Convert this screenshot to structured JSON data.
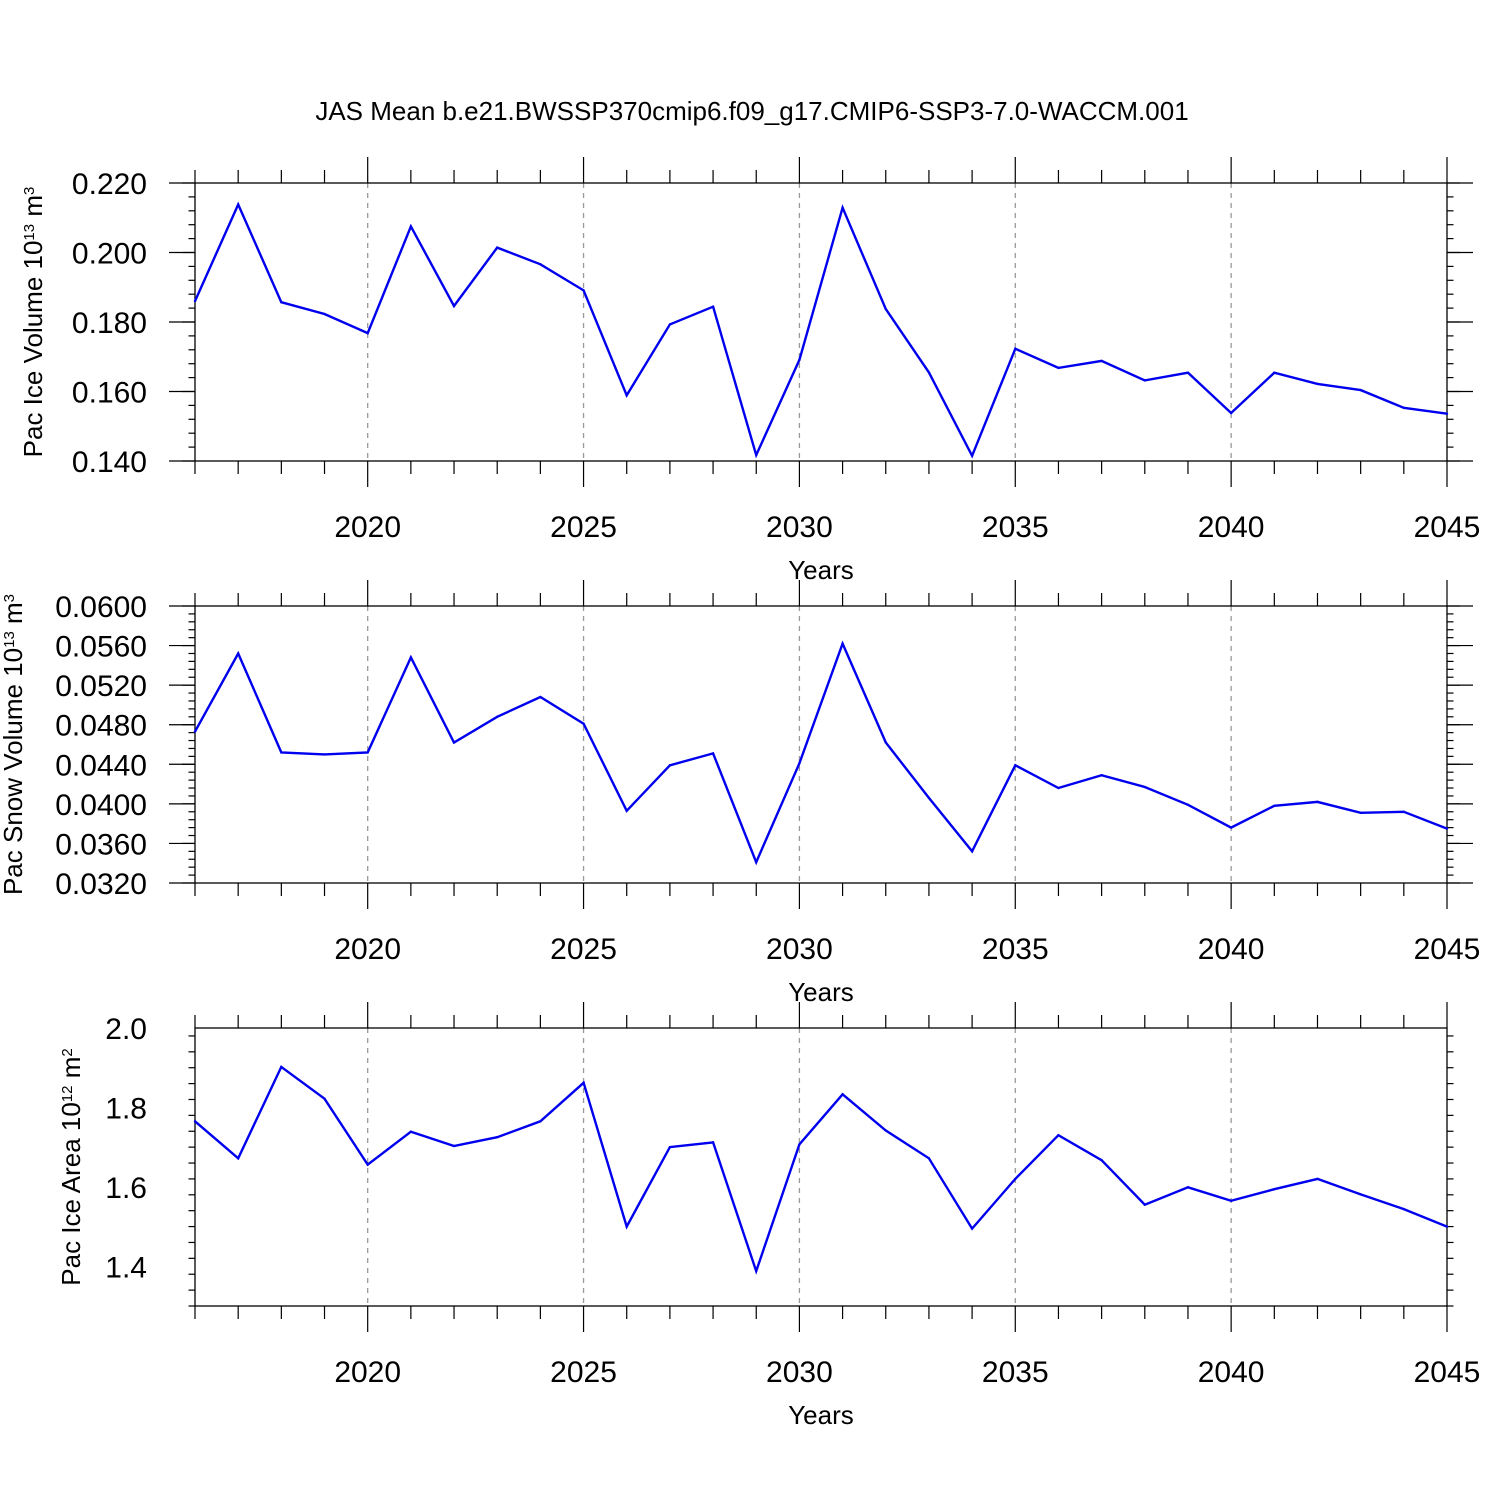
{
  "title": "JAS Mean b.e21.BWSSP370cmip6.f09_g17.CMIP6-SSP3-7.0-WACCM.001",
  "colors": {
    "line": "#0000ee",
    "axis": "#000000",
    "grid": "#999999"
  },
  "chart_data": [
    {
      "type": "line",
      "xlabel": "Years",
      "ylabel": {
        "text": "Pac Ice Volume 10",
        "exp": "13",
        "unit": " m",
        "unit_exp": "3"
      },
      "xlim": [
        2016,
        2045
      ],
      "xticks": [
        2020,
        2025,
        2030,
        2035,
        2040,
        2045
      ],
      "xtick_labels": [
        "2020",
        "2025",
        "2030",
        "2035",
        "2040",
        "2045"
      ],
      "ylim": [
        0.14,
        0.22
      ],
      "yticks": [
        0.14,
        0.16,
        0.18,
        0.2,
        0.22
      ],
      "ytick_labels": [
        "0.140",
        "0.160",
        "0.180",
        "0.200",
        "0.220"
      ],
      "grid": "vertical dashed at major x ticks",
      "x": [
        2016,
        2017,
        2018,
        2019,
        2020,
        2021,
        2022,
        2023,
        2024,
        2025,
        2026,
        2027,
        2028,
        2029,
        2030,
        2031,
        2032,
        2033,
        2034,
        2035,
        2036,
        2037,
        2038,
        2039,
        2040,
        2041,
        2042,
        2043,
        2044,
        2045
      ],
      "values": [
        0.186,
        0.2138,
        0.1857,
        0.1823,
        0.1768,
        0.2075,
        0.1846,
        0.2014,
        0.1966,
        0.1891,
        0.1589,
        0.1793,
        0.1844,
        0.1417,
        0.1691,
        0.2129,
        0.1837,
        0.1655,
        0.1415,
        0.1723,
        0.1668,
        0.1688,
        0.1632,
        0.1654,
        0.1538,
        0.1654,
        0.1622,
        0.1604,
        0.1553,
        0.1536
      ]
    },
    {
      "type": "line",
      "xlabel": "Years",
      "ylabel": {
        "text": "Pac Snow Volume 10",
        "exp": "13",
        "unit": " m",
        "unit_exp": "3"
      },
      "xlim": [
        2016,
        2045
      ],
      "xticks": [
        2020,
        2025,
        2030,
        2035,
        2040,
        2045
      ],
      "xtick_labels": [
        "2020",
        "2025",
        "2030",
        "2035",
        "2040",
        "2045"
      ],
      "ylim": [
        0.032,
        0.06
      ],
      "yticks": [
        0.032,
        0.036,
        0.04,
        0.044,
        0.048,
        0.052,
        0.056,
        0.06
      ],
      "ytick_labels": [
        "0.0320",
        "0.0360",
        "0.0400",
        "0.0440",
        "0.0480",
        "0.0520",
        "0.0560",
        "0.0600"
      ],
      "grid": "vertical dashed at major x ticks",
      "x": [
        2016,
        2017,
        2018,
        2019,
        2020,
        2021,
        2022,
        2023,
        2024,
        2025,
        2026,
        2027,
        2028,
        2029,
        2030,
        2031,
        2032,
        2033,
        2034,
        2035,
        2036,
        2037,
        2038,
        2039,
        2040,
        2041,
        2042,
        2043,
        2044,
        2045
      ],
      "values": [
        0.0473,
        0.0552,
        0.0452,
        0.045,
        0.0452,
        0.0548,
        0.0462,
        0.0488,
        0.0508,
        0.0481,
        0.0393,
        0.0439,
        0.0451,
        0.0341,
        0.0441,
        0.0562,
        0.0462,
        0.0406,
        0.0352,
        0.0439,
        0.0416,
        0.0429,
        0.0417,
        0.0399,
        0.0376,
        0.0398,
        0.0402,
        0.0391,
        0.0392,
        0.0375
      ]
    },
    {
      "type": "line",
      "xlabel": "Years",
      "ylabel": {
        "text": "Pac Ice Area 10",
        "exp": "12",
        "unit": " m",
        "unit_exp": "2"
      },
      "xlim": [
        2016,
        2045
      ],
      "xticks": [
        2020,
        2025,
        2030,
        2035,
        2040,
        2045
      ],
      "xtick_labels": [
        "2020",
        "2025",
        "2030",
        "2035",
        "2040",
        "2045"
      ],
      "ylim": [
        1.3,
        2.0
      ],
      "yticks": [
        1.4,
        1.6,
        1.8,
        2.0
      ],
      "ytick_labels": [
        "1.4",
        "1.6",
        "1.8",
        "2.0"
      ],
      "grid": "vertical dashed at major x ticks",
      "x": [
        2016,
        2017,
        2018,
        2019,
        2020,
        2021,
        2022,
        2023,
        2024,
        2025,
        2026,
        2027,
        2028,
        2029,
        2030,
        2031,
        2032,
        2033,
        2034,
        2035,
        2036,
        2037,
        2038,
        2039,
        2040,
        2041,
        2042,
        2043,
        2044,
        2045
      ],
      "values": [
        1.765,
        1.672,
        1.902,
        1.822,
        1.656,
        1.739,
        1.703,
        1.725,
        1.765,
        1.862,
        1.5,
        1.7,
        1.712,
        1.388,
        1.707,
        1.833,
        1.742,
        1.672,
        1.495,
        1.62,
        1.73,
        1.667,
        1.555,
        1.599,
        1.565,
        1.594,
        1.62,
        1.581,
        1.544,
        1.5
      ]
    }
  ]
}
